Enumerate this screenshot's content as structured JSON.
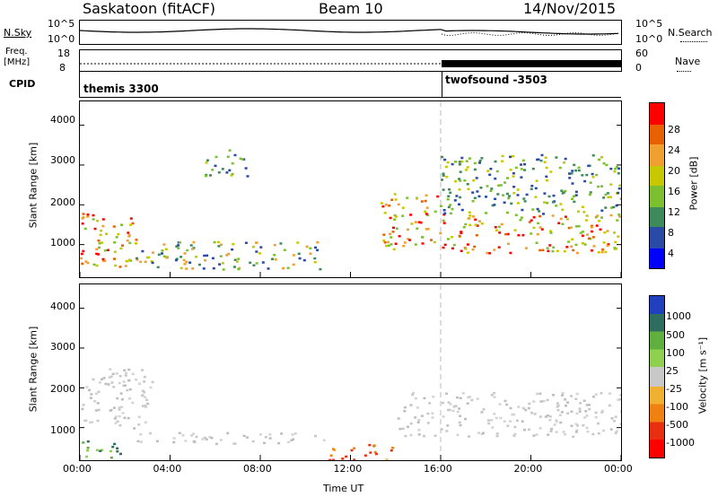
{
  "header": {
    "station": "Saskatoon (fitACF)",
    "beam": "Beam 10",
    "date": "14/Nov/2015"
  },
  "nsky_panel": {
    "left_label": "N.Sky",
    "right_label": "N.Search",
    "left_ticks": [
      "10^5",
      "10^0"
    ],
    "right_ticks": [
      "10^5",
      "10^0"
    ],
    "right_style": "dotted"
  },
  "freq_panel": {
    "left_label_1": "Freq.",
    "left_label_2": "[MHz]",
    "right_label": "Nave",
    "left_ticks": [
      "18",
      "8"
    ],
    "right_ticks": [
      "60",
      "0"
    ],
    "right_style": "dotted"
  },
  "cpid_panel": {
    "label": "CPID",
    "programs": [
      {
        "name": "themis 3300",
        "start_hour": 0
      },
      {
        "name": "twofsound -3503",
        "start_hour": 16
      }
    ]
  },
  "time_axis": {
    "label": "Time UT",
    "ticks": [
      "00:00",
      "04:00",
      "08:00",
      "12:00",
      "16:00",
      "20:00",
      "00:00"
    ],
    "hours": [
      0,
      4,
      8,
      12,
      16,
      20,
      24
    ]
  },
  "chart_data": [
    {
      "type": "heatmap",
      "title": "",
      "ylabel": "Slant Range [km]",
      "xlabel": "",
      "yticks": [
        "4000",
        "3000",
        "2000",
        "1000"
      ],
      "ytick_values": [
        4000,
        3000,
        2000,
        1000
      ],
      "ylim": [
        180,
        4600
      ],
      "xlim": [
        0,
        24
      ],
      "colorbar": {
        "label": "Power [dB]",
        "labels": [
          "28",
          "24",
          "20",
          "16",
          "12",
          "8",
          "4"
        ],
        "colors": [
          "#ff0000",
          "#e86000",
          "#f0a030",
          "#c8c800",
          "#7cc030",
          "#3f8a5a",
          "#2a4aa8",
          "#0000ff"
        ]
      },
      "regions": [
        {
          "name": "early-echo",
          "t0": 0.0,
          "t1": 2.5,
          "r0": 350,
          "r1": 1800,
          "level": "high"
        },
        {
          "name": "dawn-patch",
          "t0": 2.0,
          "t1": 10.8,
          "r0": 400,
          "r1": 1100,
          "level": "mid"
        },
        {
          "name": "morning-scatter",
          "t0": 5.5,
          "t1": 7.5,
          "r0": 2700,
          "r1": 3400,
          "level": "low"
        },
        {
          "name": "afternoon-arc",
          "t0": 13.3,
          "t1": 16.0,
          "r0": 900,
          "r1": 2300,
          "level": "high"
        },
        {
          "name": "evening-band",
          "t0": 16.0,
          "t1": 24.0,
          "r0": 800,
          "r1": 1800,
          "level": "high"
        },
        {
          "name": "evening-upper",
          "t0": 16.0,
          "t1": 24.0,
          "r0": 1800,
          "r1": 3300,
          "level": "low"
        }
      ]
    },
    {
      "type": "heatmap",
      "title": "",
      "ylabel": "Slant Range [km]",
      "xlabel": "Time UT",
      "yticks": [
        "4000",
        "3000",
        "2000",
        "1000"
      ],
      "ytick_values": [
        4000,
        3000,
        2000,
        1000
      ],
      "ylim": [
        180,
        4600
      ],
      "xlim": [
        0,
        24
      ],
      "colorbar": {
        "label": "Velocity [m s⁻¹]",
        "labels": [
          "1000",
          "500",
          "100",
          "25",
          "-25",
          "-100",
          "-500",
          "-1000"
        ],
        "colors": [
          "#2040c0",
          "#2e6e5e",
          "#60b040",
          "#90d050",
          "#c8c8c8",
          "#f0b030",
          "#f08010",
          "#e83010",
          "#ff0000"
        ]
      },
      "regions": [
        {
          "name": "ground-scatter-early",
          "t0": 0.0,
          "t1": 3.2,
          "r0": 900,
          "r1": 2500,
          "level": "ground"
        },
        {
          "name": "ground-scatter-morning",
          "t0": 2.5,
          "t1": 10.8,
          "r0": 600,
          "r1": 900,
          "level": "ground"
        },
        {
          "name": "ground-scatter-evening",
          "t0": 14.0,
          "t1": 24.0,
          "r0": 800,
          "r1": 1900,
          "level": "ground"
        },
        {
          "name": "low-ionospheric",
          "t0": 0.0,
          "t1": 2.0,
          "r0": 250,
          "r1": 700,
          "level": "positive"
        },
        {
          "name": "midday-return",
          "t0": 11.0,
          "t1": 14.0,
          "r0": 200,
          "r1": 600,
          "level": "negative"
        }
      ]
    }
  ]
}
